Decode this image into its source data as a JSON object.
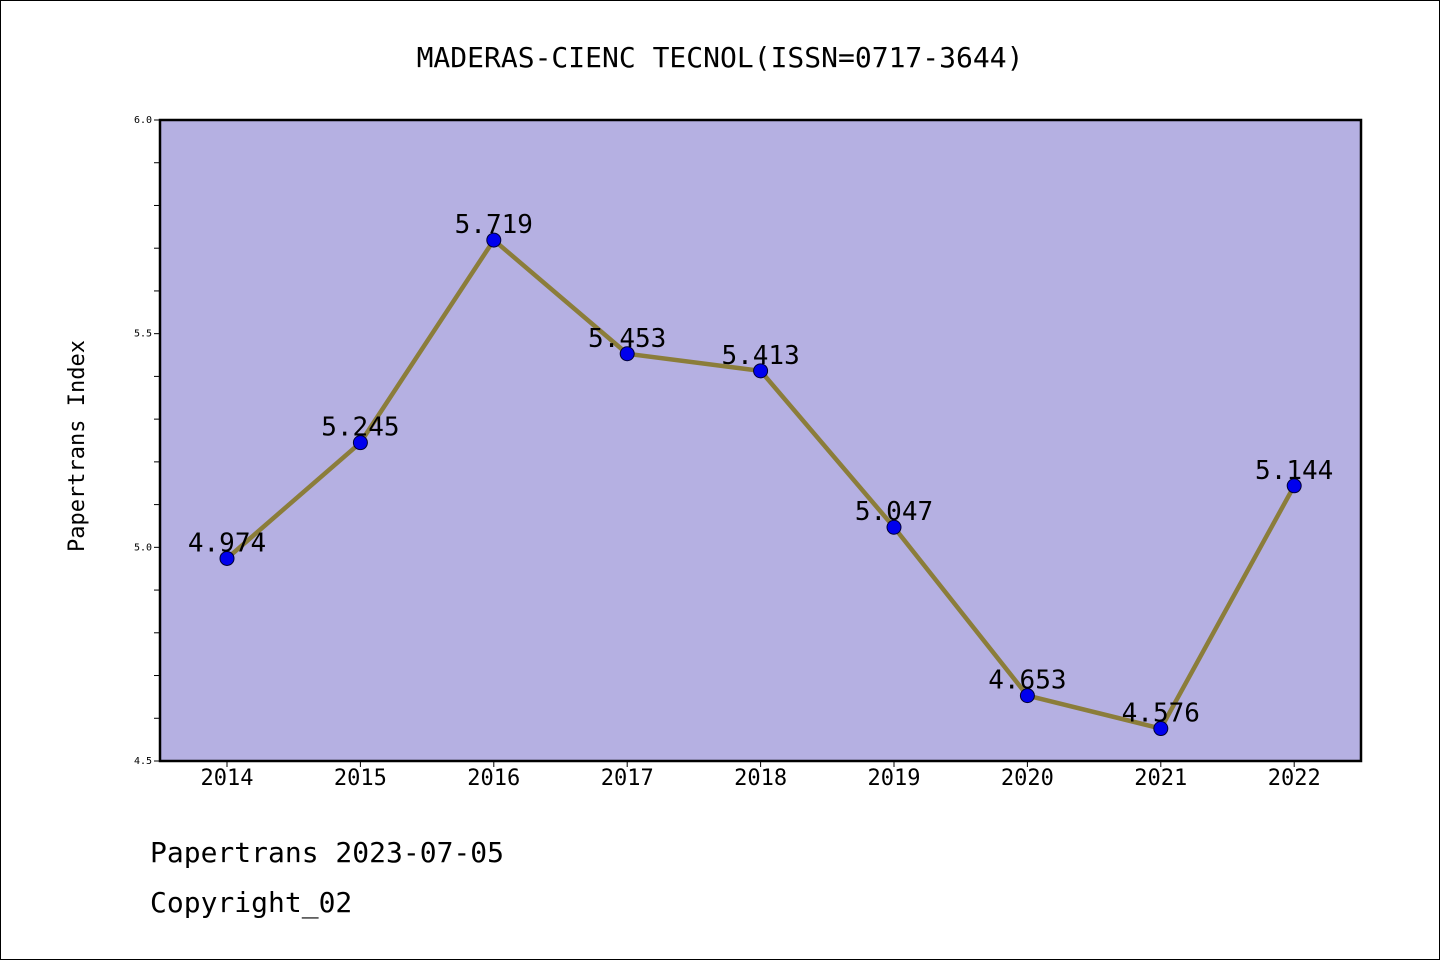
{
  "chart_data": {
    "type": "line",
    "title": "MADERAS-CIENC TECNOL(ISSN=0717-3644)",
    "xlabel": "",
    "ylabel": "Papertrans Index",
    "categories": [
      "2014",
      "2015",
      "2016",
      "2017",
      "2018",
      "2019",
      "2020",
      "2021",
      "2022"
    ],
    "values": [
      4.974,
      5.245,
      5.719,
      5.453,
      5.413,
      5.047,
      4.653,
      4.576,
      5.144
    ],
    "data_labels": [
      "4.974",
      "5.245",
      "5.719",
      "5.453",
      "5.413",
      "5.047",
      "4.653",
      "4.576",
      "5.144"
    ],
    "ylim": [
      4.5,
      6.0
    ],
    "yticks": [
      "4.5",
      "5.0",
      "5.5",
      "6.0"
    ],
    "grid": false,
    "colors": {
      "plot_background": "#b5b0e2",
      "line": "#8b7d3a",
      "marker": "#0000ee"
    }
  },
  "footer": {
    "date_line": "Papertrans 2023-07-05",
    "copyright": "Copyright_02"
  }
}
